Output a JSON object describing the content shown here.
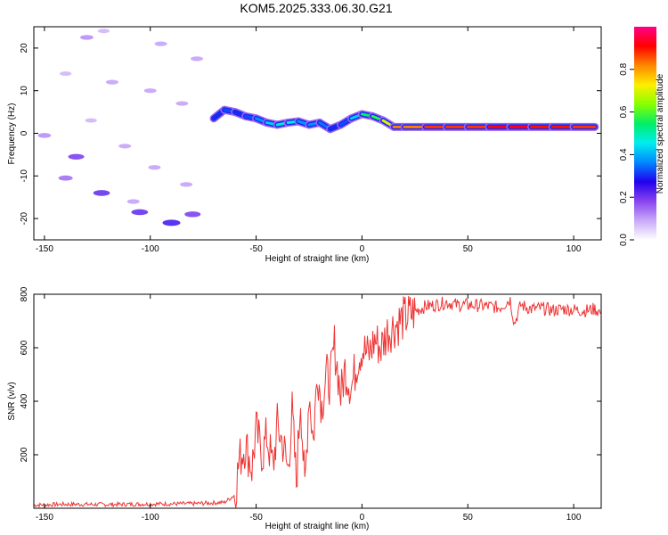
{
  "chart_data": [
    {
      "type": "heatmap",
      "title": "KOM5.2025.333.06.30.G21",
      "xlabel": "Height of straight line (km)",
      "ylabel": "Frequency (Hz)",
      "xlim": [
        -155,
        113
      ],
      "ylim": [
        -25,
        25
      ],
      "xticks": [
        -150,
        -100,
        -50,
        0,
        50,
        100
      ],
      "yticks": [
        -20,
        -10,
        0,
        10,
        20
      ],
      "colorbar": {
        "label": "Normalized spectral amplitude",
        "range": [
          0,
          1
        ],
        "ticks": [
          0.0,
          0.2,
          0.4,
          0.6,
          0.8
        ],
        "colors": [
          "#ffffff",
          "#c8a8f8",
          "#8844ee",
          "#2200ee",
          "#0088ff",
          "#00eeee",
          "#00ee66",
          "#88ff00",
          "#ffee00",
          "#ff8800",
          "#ff0000",
          "#ff0088"
        ]
      },
      "ridge": {
        "description": "frequency of dominant spectral ridge vs height",
        "x": [
          -70,
          -65,
          -60,
          -55,
          -50,
          -45,
          -40,
          -35,
          -30,
          -25,
          -20,
          -15,
          -10,
          -5,
          0,
          5,
          10,
          15,
          20,
          30,
          40,
          50,
          60,
          70,
          80,
          90,
          100,
          110
        ],
        "freq": [
          3.5,
          5.5,
          5.0,
          4.0,
          3.5,
          2.5,
          2.0,
          2.5,
          2.8,
          2.0,
          2.5,
          1.0,
          2.0,
          3.5,
          4.5,
          4.0,
          3.0,
          1.5,
          1.5,
          1.5,
          1.5,
          1.5,
          1.5,
          1.5,
          1.5,
          1.5,
          1.5,
          1.5
        ],
        "amp": [
          0.25,
          0.35,
          0.3,
          0.3,
          0.35,
          0.4,
          0.45,
          0.5,
          0.4,
          0.35,
          0.4,
          0.3,
          0.3,
          0.35,
          0.5,
          0.6,
          0.55,
          0.85,
          0.8,
          0.85,
          0.9,
          0.85,
          0.9,
          0.95,
          0.9,
          0.9,
          0.9,
          0.85
        ]
      },
      "noise_blobs": {
        "description": "scattered low-amplitude patches below ~-70 km",
        "points": [
          [
            -130,
            22.5,
            0.12
          ],
          [
            -122,
            24,
            0.08
          ],
          [
            -95,
            21,
            0.1
          ],
          [
            -78,
            17.5,
            0.1
          ],
          [
            -140,
            14,
            0.08
          ],
          [
            -118,
            12,
            0.1
          ],
          [
            -100,
            10,
            0.1
          ],
          [
            -85,
            7,
            0.1
          ],
          [
            -135,
            -5.5,
            0.2
          ],
          [
            -140,
            -10.5,
            0.15
          ],
          [
            -123,
            -14,
            0.22
          ],
          [
            -108,
            -16,
            0.1
          ],
          [
            -105,
            -18.5,
            0.22
          ],
          [
            -90,
            -21,
            0.25
          ],
          [
            -80,
            -19,
            0.2
          ],
          [
            -150,
            -0.5,
            0.12
          ],
          [
            -128,
            3,
            0.08
          ],
          [
            -112,
            -3,
            0.1
          ],
          [
            -98,
            -8,
            0.1
          ],
          [
            -83,
            -12,
            0.1
          ]
        ]
      }
    },
    {
      "type": "line",
      "title": "",
      "xlabel": "Height of straight line (km)",
      "ylabel": "SNR (v/v)",
      "xlim": [
        -155,
        113
      ],
      "ylim": [
        0,
        800
      ],
      "xticks": [
        -150,
        -100,
        -50,
        0,
        50,
        100
      ],
      "yticks": [
        200,
        400,
        600,
        800
      ],
      "color": "#ee3333",
      "series": [
        {
          "name": "SNR",
          "x": [
            -155,
            -140,
            -120,
            -100,
            -80,
            -65,
            -60,
            -58,
            -55,
            -52,
            -50,
            -47,
            -45,
            -42,
            -40,
            -37,
            -35,
            -33,
            -31,
            -29,
            -27,
            -25,
            -23,
            -21,
            -19,
            -17,
            -15,
            -13,
            -10,
            -8,
            -5,
            -2,
            0,
            3,
            6,
            9,
            12,
            15,
            18,
            22,
            26,
            30,
            35,
            40,
            45,
            50,
            55,
            60,
            65,
            70,
            72,
            75,
            80,
            85,
            90,
            95,
            100,
            105,
            110,
            113
          ],
          "y": [
            12,
            15,
            14,
            16,
            17,
            22,
            50,
            180,
            240,
            150,
            290,
            200,
            270,
            150,
            310,
            230,
            140,
            360,
            90,
            420,
            60,
            440,
            250,
            520,
            380,
            500,
            470,
            610,
            420,
            520,
            450,
            560,
            600,
            570,
            630,
            600,
            660,
            680,
            700,
            720,
            740,
            755,
            760,
            770,
            760,
            760,
            758,
            755,
            750,
            780,
            690,
            760,
            745,
            748,
            740,
            745,
            742,
            738,
            745,
            730
          ]
        }
      ]
    }
  ]
}
